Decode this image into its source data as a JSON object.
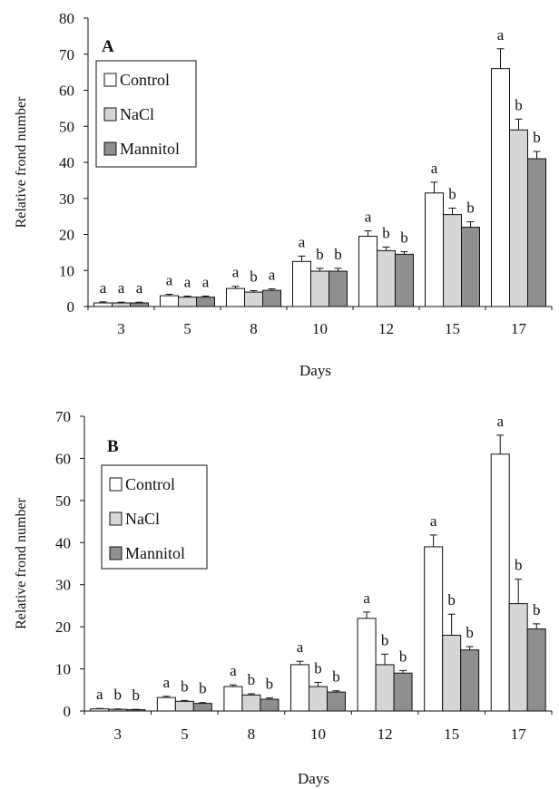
{
  "colors": {
    "Control": "#ffffff",
    "NaCl": "#d6d6d6",
    "Mannitol": "#8f8f8f",
    "stroke": "#111111"
  },
  "chart_data": [
    {
      "type": "bar",
      "panel_label": "A",
      "ylabel": "Relative frond number",
      "xlabel": "Days",
      "ylim": [
        0,
        80
      ],
      "yticks": [
        0,
        10,
        20,
        30,
        40,
        50,
        60,
        70,
        80
      ],
      "categories": [
        "3",
        "5",
        "8",
        "10",
        "12",
        "15",
        "17"
      ],
      "legend": {
        "position": "top-left",
        "entries": [
          "Control",
          "NaCl",
          "Mannitol"
        ]
      },
      "series": [
        {
          "name": "Control",
          "values": [
            1.0,
            3.0,
            5.0,
            12.5,
            19.5,
            31.5,
            66.0
          ],
          "errors": [
            0.3,
            0.4,
            0.6,
            1.5,
            1.5,
            3.0,
            5.5
          ],
          "letters": [
            "a",
            "a",
            "a",
            "a",
            "a",
            "a",
            "a"
          ]
        },
        {
          "name": "NaCl",
          "values": [
            1.0,
            2.6,
            4.0,
            9.8,
            15.5,
            25.5,
            49.0
          ],
          "errors": [
            0.2,
            0.3,
            0.4,
            0.8,
            1.0,
            1.8,
            3.0
          ],
          "letters": [
            "a",
            "a",
            "b",
            "b",
            "b",
            "b",
            "b"
          ]
        },
        {
          "name": "Mannitol",
          "values": [
            1.0,
            2.6,
            4.5,
            9.8,
            14.5,
            22.0,
            41.0
          ],
          "errors": [
            0.2,
            0.3,
            0.4,
            0.8,
            0.7,
            1.5,
            2.0
          ],
          "letters": [
            "a",
            "a",
            "a",
            "b",
            "b",
            "b",
            "b"
          ]
        }
      ]
    },
    {
      "type": "bar",
      "panel_label": "B",
      "ylabel": "Relative frond number",
      "xlabel": "Days",
      "ylim": [
        0,
        70
      ],
      "yticks": [
        0,
        10,
        20,
        30,
        40,
        50,
        60,
        70
      ],
      "categories": [
        "3",
        "5",
        "8",
        "10",
        "12",
        "15",
        "17"
      ],
      "legend": {
        "position": "top-left",
        "entries": [
          "Control",
          "NaCl",
          "Mannitol"
        ]
      },
      "series": [
        {
          "name": "Control",
          "values": [
            0.5,
            3.2,
            5.8,
            11.0,
            22.0,
            39.0,
            61.0
          ],
          "errors": [
            0.1,
            0.3,
            0.4,
            0.8,
            1.5,
            2.8,
            4.5
          ],
          "letters": [
            "a",
            "a",
            "a",
            "a",
            "a",
            "a",
            "a"
          ]
        },
        {
          "name": "NaCl",
          "values": [
            0.4,
            2.3,
            3.8,
            5.8,
            11.0,
            18.0,
            25.5
          ],
          "errors": [
            0.1,
            0.2,
            0.3,
            1.0,
            2.5,
            5.0,
            5.8
          ],
          "letters": [
            "b",
            "b",
            "b",
            "b",
            "b",
            "b",
            "b"
          ]
        },
        {
          "name": "Mannitol",
          "values": [
            0.3,
            1.8,
            2.8,
            4.5,
            9.0,
            14.5,
            19.5
          ],
          "errors": [
            0.1,
            0.2,
            0.3,
            0.3,
            0.6,
            0.8,
            1.2
          ],
          "letters": [
            "b",
            "b",
            "b",
            "b",
            "b",
            "b",
            "b"
          ]
        }
      ]
    }
  ]
}
